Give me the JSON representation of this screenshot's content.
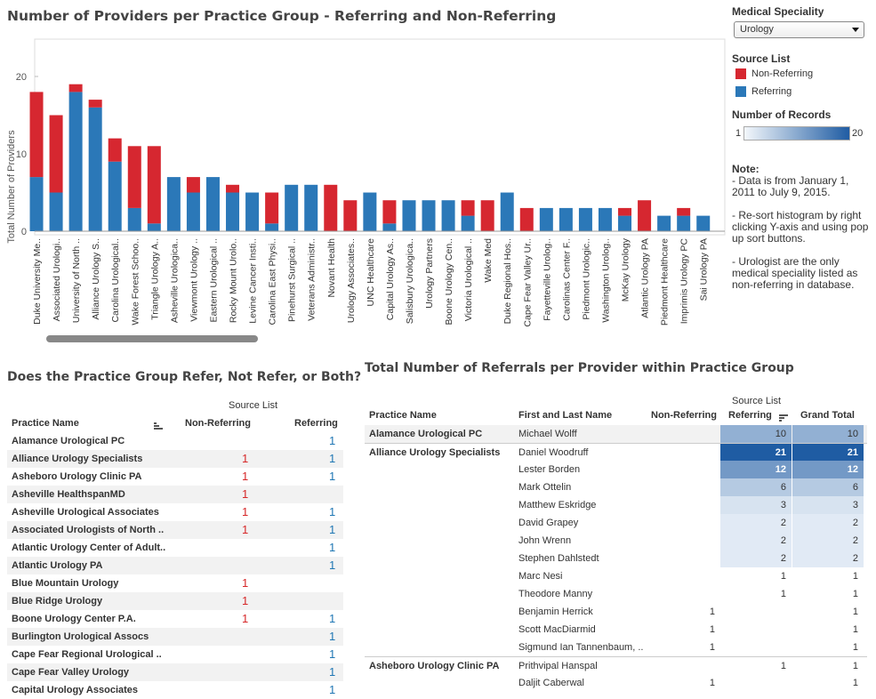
{
  "main_title": "Number of Providers per Practice Group - Referring and Non-Referring",
  "chart_data": {
    "type": "bar",
    "ylabel": "Total Number of Providers",
    "yticks": [
      "0",
      "10",
      "20"
    ],
    "ylim": [
      0,
      20
    ],
    "stacked": true,
    "series_names": [
      "Referring",
      "Non-Referring"
    ],
    "categories": [
      "Duke University Me..",
      "Associated Urologi..",
      "University of North ..",
      "Alliance Urology S..",
      "Carolina Urological..",
      "Wake Forest Schoo..",
      "Triangle Urology A..",
      "Asheville Urologica..",
      "Viewmont Urology ..",
      "Eastern Urological ..",
      "Rocky Mount Urolo..",
      "Levine Cancer Insti..",
      "Carolina East Physi..",
      "Pinehurst Surgical ..",
      "Veterans Administr..",
      "Novant Health",
      "Urology Associates..",
      "UNC Healthcare",
      "Capital Urology As..",
      "Salisbury Urologica..",
      "Urology Partners",
      "Boone Urology Cen..",
      "Victoria Urological ..",
      "Wake Med",
      "Duke Regional Hos..",
      "Cape Fear Valley Ur..",
      "Fayetteville Urolog..",
      "Carolinas Center F..",
      "Piedmont Urologic..",
      "Washington Urolog..",
      "McKay Urology",
      "Atlantic Urology PA",
      "Piedmont Healthcare",
      "Imprimis Urology PC",
      "Sai Urology PA"
    ],
    "referring": [
      7,
      5,
      18,
      16,
      9,
      3,
      1,
      7,
      5,
      7,
      5,
      5,
      1,
      6,
      6,
      0,
      0,
      5,
      1,
      4,
      4,
      4,
      2,
      0,
      5,
      0,
      3,
      3,
      3,
      3,
      2,
      0,
      2,
      2,
      2
    ],
    "non_referring": [
      11,
      10,
      1,
      1,
      3,
      8,
      10,
      0,
      2,
      0,
      1,
      0,
      4,
      0,
      0,
      6,
      4,
      0,
      3,
      0,
      0,
      0,
      2,
      4,
      0,
      3,
      0,
      0,
      0,
      0,
      1,
      4,
      0,
      1,
      0
    ],
    "colors": {
      "referring": "#2b78b8",
      "non_referring": "#d62730"
    }
  },
  "filters": {
    "speciality_label": "Medical Speciality",
    "speciality_value": "Urology",
    "source_list_label": "Source List",
    "legend": [
      {
        "label": "Non-Referring",
        "color": "#d62730"
      },
      {
        "label": "Referring",
        "color": "#2b78b8"
      }
    ],
    "records_label": "Number of Records",
    "records_min": "1",
    "records_max": "20"
  },
  "note": {
    "heading": "Note:",
    "lines": [
      "- Data is from January 1, 2011 to July 9, 2015.",
      "- Re-sort histogram by right clicking Y-axis and using pop up sort buttons.",
      "- Urologist are the only medical speciality listed as non-referring in database."
    ]
  },
  "left_table": {
    "title": "Does the Practice Group Refer, Not Refer, or Both?",
    "source_list_label": "Source List",
    "col_practice": "Practice Name",
    "col_non_ref": "Non-Referring",
    "col_ref": "Referring",
    "rows": [
      {
        "name": "Alamance Urological PC",
        "non_ref": "",
        "ref": "1"
      },
      {
        "name": "Alliance Urology Specialists",
        "non_ref": "1",
        "ref": "1"
      },
      {
        "name": "Asheboro Urology Clinic PA",
        "non_ref": "1",
        "ref": "1"
      },
      {
        "name": "Asheville HealthspanMD",
        "non_ref": "1",
        "ref": ""
      },
      {
        "name": "Asheville Urological Associates",
        "non_ref": "1",
        "ref": "1"
      },
      {
        "name": "Associated Urologists of North ..",
        "non_ref": "1",
        "ref": "1"
      },
      {
        "name": "Atlantic Urology Center of Adult..",
        "non_ref": "",
        "ref": "1"
      },
      {
        "name": "Atlantic Urology PA",
        "non_ref": "",
        "ref": "1"
      },
      {
        "name": "Blue Mountain Urology",
        "non_ref": "1",
        "ref": ""
      },
      {
        "name": "Blue Ridge Urology",
        "non_ref": "1",
        "ref": ""
      },
      {
        "name": "Boone Urology Center P.A.",
        "non_ref": "1",
        "ref": "1"
      },
      {
        "name": "Burlington Urological Assocs",
        "non_ref": "",
        "ref": "1"
      },
      {
        "name": "Cape Fear Regional Urological ..",
        "non_ref": "",
        "ref": "1"
      },
      {
        "name": "Cape Fear Valley Urology",
        "non_ref": "",
        "ref": "1"
      },
      {
        "name": "Capital Urology Associates",
        "non_ref": "",
        "ref": "1"
      }
    ]
  },
  "right_table": {
    "title": "Total Number of Referrals per Provider within Practice Group",
    "source_list_label": "Source List",
    "col_practice": "Practice Name",
    "col_name": "First and Last Name",
    "col_non_ref": "Non-Referring",
    "col_ref": "Referring",
    "col_total": "Grand Total",
    "rows": [
      {
        "practice": "Alamance Urological PC",
        "name": "Michael Wolff",
        "non_ref": "",
        "ref": "10",
        "total": "10",
        "shade": 0.45
      },
      {
        "practice": "Alliance Urology Specialists",
        "name": "Daniel Woodruff",
        "non_ref": "",
        "ref": "21",
        "total": "21",
        "shade": 1.0
      },
      {
        "practice": "",
        "name": "Lester Borden",
        "non_ref": "",
        "ref": "12",
        "total": "12",
        "shade": 0.6
      },
      {
        "practice": "",
        "name": "Mark Ottelin",
        "non_ref": "",
        "ref": "6",
        "total": "6",
        "shade": 0.28
      },
      {
        "practice": "",
        "name": "Matthew Eskridge",
        "non_ref": "",
        "ref": "3",
        "total": "3",
        "shade": 0.12
      },
      {
        "practice": "",
        "name": "David Grapey",
        "non_ref": "",
        "ref": "2",
        "total": "2",
        "shade": 0.07
      },
      {
        "practice": "",
        "name": "John Wrenn",
        "non_ref": "",
        "ref": "2",
        "total": "2",
        "shade": 0.07
      },
      {
        "practice": "",
        "name": "Stephen Dahlstedt",
        "non_ref": "",
        "ref": "2",
        "total": "2",
        "shade": 0.07
      },
      {
        "practice": "",
        "name": "Marc Nesi",
        "non_ref": "",
        "ref": "1",
        "total": "1",
        "shade": 0
      },
      {
        "practice": "",
        "name": "Theodore  Manny",
        "non_ref": "",
        "ref": "1",
        "total": "1",
        "shade": 0
      },
      {
        "practice": "",
        "name": "Benjamin Herrick",
        "non_ref": "1",
        "ref": "",
        "total": "1",
        "shade": 0
      },
      {
        "practice": "",
        "name": "Scott MacDiarmid",
        "non_ref": "1",
        "ref": "",
        "total": "1",
        "shade": 0
      },
      {
        "practice": "",
        "name": "Sigmund Ian Tannenbaum, ..",
        "non_ref": "1",
        "ref": "",
        "total": "1",
        "shade": 0
      },
      {
        "practice": "Asheboro Urology Clinic PA",
        "name": "Prithvipal Hanspal",
        "non_ref": "",
        "ref": "1",
        "total": "1",
        "shade": 0
      },
      {
        "practice": "",
        "name": "Daljit Caberwal",
        "non_ref": "1",
        "ref": "",
        "total": "1",
        "shade": 0
      }
    ]
  }
}
